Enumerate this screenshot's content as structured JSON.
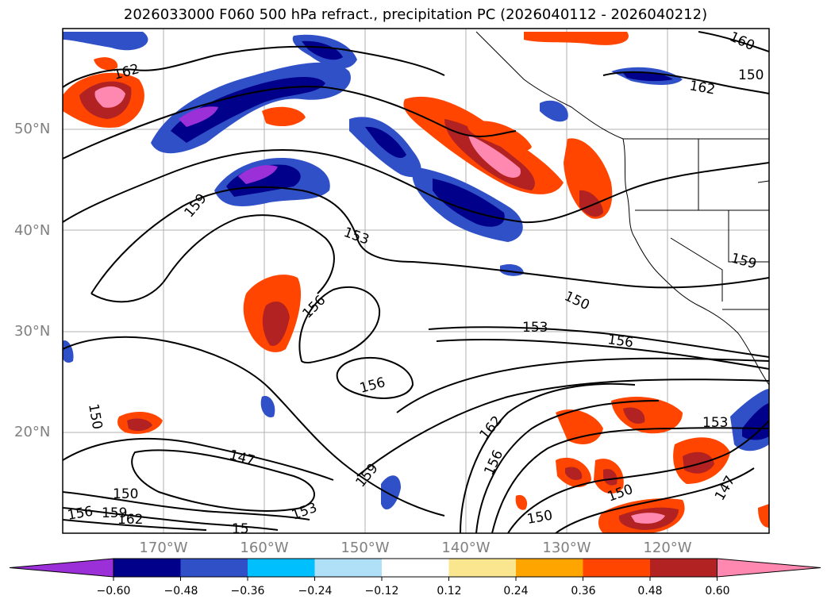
{
  "title": "2026033000 F060 500 hPa refract., precipitation PC (2026040112 - 2026040212)",
  "lat_labels": [
    "50°N",
    "40°N",
    "30°N",
    "20°N"
  ],
  "lon_labels": [
    "170°W",
    "160°W",
    "150°W",
    "140°W",
    "130°W",
    "120°W"
  ],
  "contour_labels": [
    "162",
    "162",
    "160",
    "159",
    "153",
    "159",
    "156",
    "150",
    "153",
    "156",
    "156",
    "150",
    "147",
    "150",
    "156",
    "159",
    "162",
    "159",
    "153",
    "162",
    "156",
    "150",
    "150",
    "153",
    "147",
    "150",
    "15"
  ],
  "colorbar": {
    "ticks": [
      "−0.60",
      "−0.48",
      "−0.36",
      "−0.24",
      "−0.12",
      "0.12",
      "0.24",
      "0.36",
      "0.48",
      "0.60"
    ],
    "colors": [
      "#9b30d9",
      "#00008b",
      "#3050c8",
      "#00bfff",
      "#b0e0f8",
      "#ffffff",
      "#fbe690",
      "#ffa500",
      "#ff4500",
      "#b22222",
      "#ff88b0"
    ]
  }
}
